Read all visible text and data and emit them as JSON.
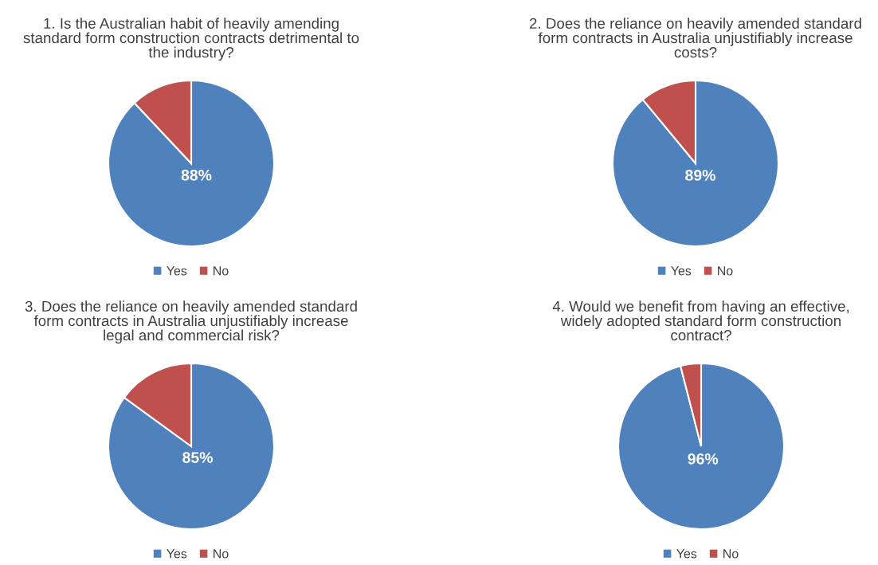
{
  "chart_data": [
    {
      "type": "pie",
      "title": "1. Is the Australian habit of heavily amending\nstandard form construction contracts detrimental to\nthe industry?",
      "categories": [
        "Yes",
        "No"
      ],
      "values": [
        88,
        12
      ],
      "colors": [
        "#4f81bd",
        "#c0504d"
      ],
      "value_labels": [
        "88%",
        null
      ],
      "legend": "bottom"
    },
    {
      "type": "pie",
      "title": "2. Does the reliance on heavily amended standard\nform contracts in Australia unjustifiably increase\ncosts?",
      "categories": [
        "Yes",
        "No"
      ],
      "values": [
        89,
        11
      ],
      "colors": [
        "#4f81bd",
        "#c0504d"
      ],
      "value_labels": [
        "89%",
        null
      ],
      "legend": "bottom"
    },
    {
      "type": "pie",
      "title": "3. Does the reliance on heavily amended standard\nform contracts in Australia unjustifiably increase\nlegal and commercial risk?",
      "categories": [
        "Yes",
        "No"
      ],
      "values": [
        85,
        15
      ],
      "colors": [
        "#4f81bd",
        "#c0504d"
      ],
      "value_labels": [
        "85%",
        null
      ],
      "legend": "bottom"
    },
    {
      "type": "pie",
      "title": "4. Would we benefit from having an effective,\nwidely adopted standard form construction\ncontract?",
      "categories": [
        "Yes",
        "No"
      ],
      "values": [
        96,
        4
      ],
      "colors": [
        "#4f81bd",
        "#c0504d"
      ],
      "value_labels": [
        "96%",
        null
      ],
      "legend": "bottom"
    }
  ]
}
